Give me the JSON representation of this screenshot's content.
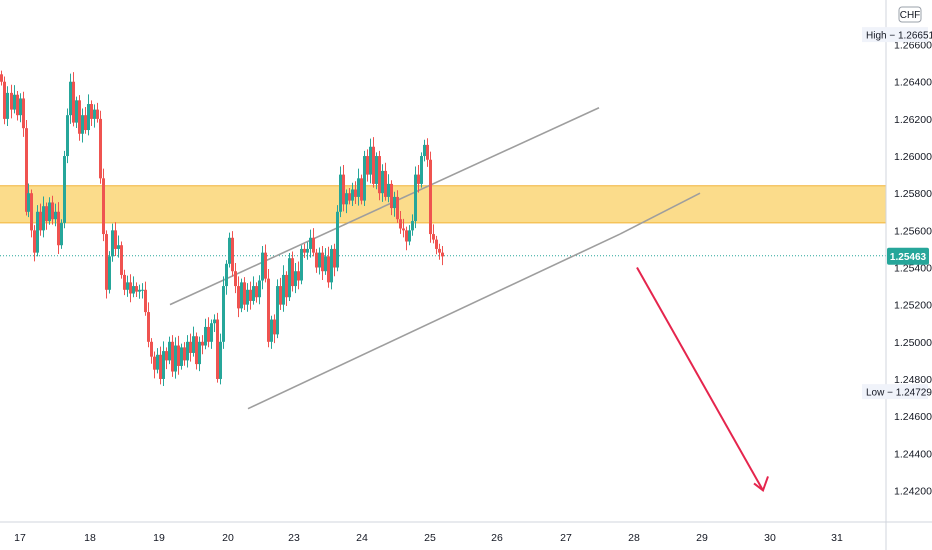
{
  "chart_data": {
    "type": "candlestick",
    "currency": "CHF",
    "x_tick_labels": [
      "17",
      "18",
      "19",
      "20",
      "23",
      "24",
      "25",
      "26",
      "27",
      "28",
      "29",
      "30",
      "31"
    ],
    "y_ticks": [
      1.242,
      1.244,
      1.246,
      1.248,
      1.25,
      1.252,
      1.254,
      1.256,
      1.258,
      1.26,
      1.262,
      1.264,
      1.266
    ],
    "y_tick_labels": [
      "1.24200",
      "1.24400",
      "1.24600",
      "1.24800",
      "1.25000",
      "1.25200",
      "1.25400",
      "1.25600",
      "1.25800",
      "1.26000",
      "1.26200",
      "1.26400",
      "1.26600"
    ],
    "ylim": [
      1.2403,
      1.2684
    ],
    "high": {
      "label": "High",
      "value": "1.26651"
    },
    "low": {
      "label": "Low",
      "value": "1.24729"
    },
    "current_price": {
      "value": "1.25463",
      "price": 1.25463
    },
    "zone": {
      "from": 1.2564,
      "to": 1.2584,
      "color": "#f9c744"
    },
    "channel_upper": {
      "from": {
        "date": "19",
        "price": 1.252
      },
      "to": {
        "date": "27",
        "price": 1.2626
      }
    },
    "channel_lower": {
      "from": {
        "date": "20",
        "price": 1.2464
      },
      "to": {
        "date": "28",
        "price": 1.2558
      }
    },
    "arrow": {
      "from": {
        "date": "28",
        "price": 1.254
      },
      "to": {
        "date": "30",
        "price": 1.242
      },
      "color": "#e5254d"
    },
    "colors": {
      "up": "#26a69a",
      "down": "#ef5350",
      "current": "#26a69a",
      "trendline": "#9e9e9e"
    },
    "candle_path": [
      [
        1.264,
        3
      ],
      [
        1.262,
        3
      ],
      [
        1.2634,
        4
      ],
      [
        1.2625,
        3
      ],
      [
        1.2633,
        3
      ],
      [
        1.2622,
        3
      ],
      [
        1.2631,
        3
      ],
      [
        1.2615,
        3
      ],
      [
        1.257,
        2
      ],
      [
        1.258,
        3
      ],
      [
        1.256,
        3
      ],
      [
        1.2548,
        3
      ],
      [
        1.257,
        3
      ],
      [
        1.256,
        3
      ],
      [
        1.2573,
        3
      ],
      [
        1.2565,
        3
      ],
      [
        1.2575,
        3
      ],
      [
        1.2566,
        3
      ],
      [
        1.257,
        3
      ],
      [
        1.2552,
        3
      ],
      [
        1.2564,
        3
      ],
      [
        1.26,
        3
      ],
      [
        1.2622,
        3
      ],
      [
        1.264,
        3
      ],
      [
        1.2618,
        3
      ],
      [
        1.263,
        3
      ],
      [
        1.2612,
        3
      ],
      [
        1.2622,
        3
      ],
      [
        1.2614,
        3
      ],
      [
        1.2628,
        3
      ],
      [
        1.262,
        3
      ],
      [
        1.2625,
        3
      ],
      [
        1.262,
        3
      ],
      [
        1.2588,
        3
      ],
      [
        1.2558,
        3
      ],
      [
        1.2528,
        3
      ],
      [
        1.2546,
        3
      ],
      [
        1.256,
        3
      ],
      [
        1.255,
        3
      ],
      [
        1.2552,
        3
      ],
      [
        1.2536,
        3
      ],
      [
        1.2528,
        3
      ],
      [
        1.2532,
        3
      ],
      [
        1.2526,
        3
      ],
      [
        1.253,
        3
      ],
      [
        1.2527,
        3
      ],
      [
        1.2528,
        3
      ],
      [
        1.2528,
        3
      ],
      [
        1.2516,
        3
      ],
      [
        1.25,
        3
      ],
      [
        1.2492,
        3
      ],
      [
        1.2485,
        3
      ],
      [
        1.2493,
        3
      ],
      [
        1.248,
        3
      ],
      [
        1.2495,
        3
      ],
      [
        1.249,
        3
      ],
      [
        1.25,
        3
      ],
      [
        1.2484,
        3
      ],
      [
        1.2498,
        3
      ],
      [
        1.2487,
        3
      ],
      [
        1.2497,
        3
      ],
      [
        1.249,
        3
      ],
      [
        1.25,
        3
      ],
      [
        1.2494,
        3
      ],
      [
        1.2503,
        3
      ],
      [
        1.2488,
        3
      ],
      [
        1.25,
        3
      ],
      [
        1.2498,
        3
      ],
      [
        1.2508,
        3
      ],
      [
        1.25,
        3
      ],
      [
        1.251,
        3
      ],
      [
        1.2512,
        3
      ],
      [
        1.248,
        3
      ],
      [
        1.25,
        3
      ],
      [
        1.253,
        3
      ],
      [
        1.2542,
        3
      ],
      [
        1.2556,
        3
      ],
      [
        1.2538,
        3
      ],
      [
        1.253,
        3
      ],
      [
        1.2518,
        3
      ],
      [
        1.2532,
        3
      ],
      [
        1.252,
        3
      ],
      [
        1.2528,
        3
      ],
      [
        1.2522,
        3
      ],
      [
        1.253,
        3
      ],
      [
        1.2524,
        3
      ],
      [
        1.2533,
        3
      ],
      [
        1.2548,
        3
      ],
      [
        1.2534,
        3
      ],
      [
        1.25,
        3
      ],
      [
        1.2512,
        3
      ],
      [
        1.2504,
        3
      ],
      [
        1.253,
        3
      ],
      [
        1.252,
        3
      ],
      [
        1.2536,
        3
      ],
      [
        1.2524,
        3
      ],
      [
        1.2545,
        3
      ],
      [
        1.253,
        3
      ],
      [
        1.2538,
        3
      ],
      [
        1.2533,
        3
      ],
      [
        1.255,
        3
      ],
      [
        1.2548,
        3
      ],
      [
        1.255,
        3
      ],
      [
        1.2556,
        3
      ],
      [
        1.2548,
        3
      ],
      [
        1.254,
        3
      ],
      [
        1.2548,
        3
      ],
      [
        1.2538,
        3
      ],
      [
        1.2546,
        3
      ],
      [
        1.2532,
        3
      ],
      [
        1.255,
        3
      ],
      [
        1.254,
        3
      ],
      [
        1.257,
        3
      ],
      [
        1.259,
        3
      ],
      [
        1.2574,
        3
      ],
      [
        1.258,
        3
      ],
      [
        1.2576,
        3
      ],
      [
        1.2582,
        3
      ],
      [
        1.2578,
        3
      ],
      [
        1.2588,
        3
      ],
      [
        1.2576,
        3
      ],
      [
        1.26,
        3
      ],
      [
        1.259,
        3
      ],
      [
        1.2605,
        3
      ],
      [
        1.2585,
        3
      ],
      [
        1.26,
        3
      ],
      [
        1.258,
        3
      ],
      [
        1.2592,
        3
      ],
      [
        1.2578,
        3
      ],
      [
        1.2585,
        3
      ],
      [
        1.2572,
        3
      ],
      [
        1.2578,
        3
      ],
      [
        1.2566,
        3
      ],
      [
        1.2561,
        3
      ],
      [
        1.256,
        3
      ],
      [
        1.2554,
        3
      ],
      [
        1.256,
        3
      ],
      [
        1.2565,
        3
      ],
      [
        1.259,
        3
      ],
      [
        1.2585,
        3
      ],
      [
        1.26,
        3
      ],
      [
        1.2606,
        3
      ],
      [
        1.2598,
        3
      ],
      [
        1.2558,
        3
      ],
      [
        1.2555,
        3
      ],
      [
        1.255,
        3
      ],
      [
        1.2548,
        3
      ],
      [
        1.2546,
        3
      ]
    ]
  }
}
